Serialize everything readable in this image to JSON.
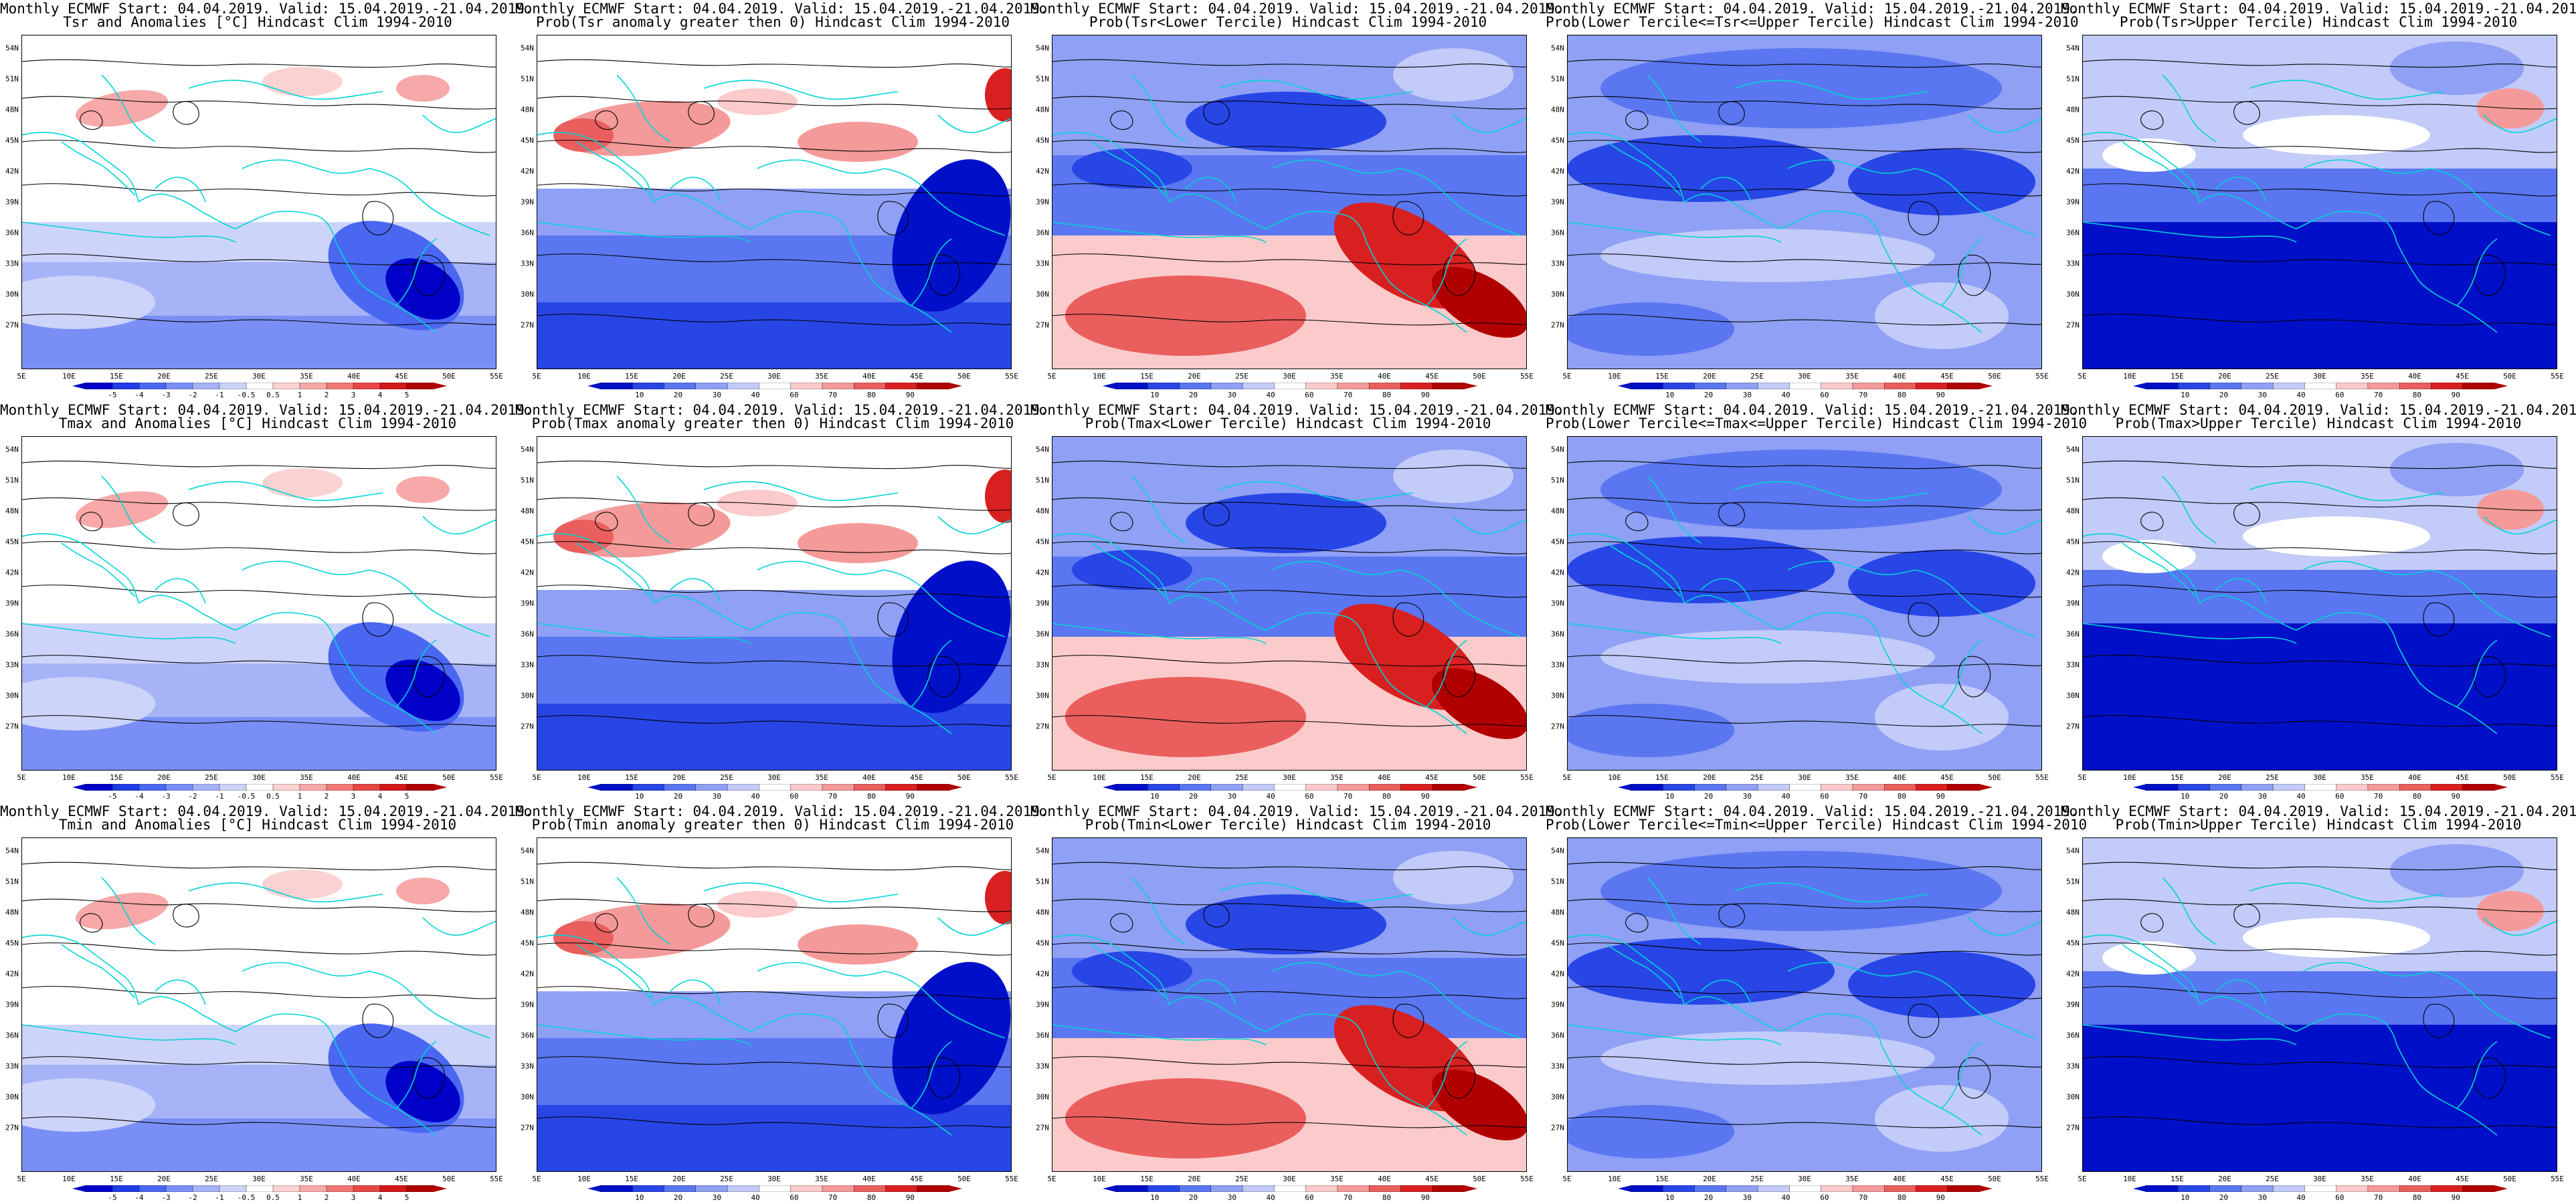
{
  "title_line1": "Monthly ECMWF Start: 04.04.2019. Valid: 15.04.2019.-21.04.2019.",
  "x_ticks": [
    "5E",
    "10E",
    "15E",
    "20E",
    "25E",
    "30E",
    "35E",
    "40E",
    "45E",
    "50E",
    "55E"
  ],
  "y_ticks": [
    "54N",
    "51N",
    "48N",
    "45N",
    "42N",
    "39N",
    "36N",
    "33N",
    "30N",
    "27N"
  ],
  "colorbars": {
    "anomaly": [
      "-5",
      "-4",
      "-3",
      "-2",
      "-1",
      "-0.5",
      "0.5",
      "1",
      "2",
      "3",
      "4",
      "5"
    ],
    "probability": [
      "10",
      "20",
      "30",
      "40",
      "60",
      "70",
      "80",
      "90"
    ]
  },
  "colors": {
    "coast": "#00d5d5",
    "contour": "#000000",
    "anomaly_scale": [
      "#0000c8",
      "#1f3ce6",
      "#4a67f2",
      "#7a8ff5",
      "#a6b3f7",
      "#cdd4fa",
      "#ffffff",
      "#fbd2d2",
      "#f7a8a8",
      "#f27878",
      "#e84545",
      "#d21717",
      "#b00000"
    ],
    "prob_scale": [
      "#0010c8",
      "#2846e6",
      "#5a76f0",
      "#8fa0f5",
      "#c3cbf8",
      "#ffffff",
      "#fbcaca",
      "#f49a9a",
      "#ea5e5e",
      "#d82020",
      "#b00000"
    ]
  },
  "panels": [
    {
      "title2": "Tsr and Anomalies [°C] Hindcast Clim 1994-2010",
      "type": "anomaly",
      "pattern": "warmN"
    },
    {
      "title2": "Prob(Tsr anomaly greater then 0) Hindcast Clim 1994-2010",
      "type": "probability",
      "pattern": "probWarmN"
    },
    {
      "title2": "Prob(Tsr<Lower Tercile) Hindcast Clim 1994-2010",
      "type": "probability",
      "pattern": "lowerTercile"
    },
    {
      "title2": "Prob(Lower Tercile<=Tsr<=Upper Tercile) Hindcast Clim 1994-2010",
      "type": "probability",
      "pattern": "middle"
    },
    {
      "title2": "Prob(Tsr>Upper Tercile) Hindcast Clim 1994-2010",
      "type": "probability",
      "pattern": "upperTercile"
    },
    {
      "title2": "Tmax and Anomalies [°C] Hindcast Clim 1994-2010",
      "type": "anomaly",
      "pattern": "warmN"
    },
    {
      "title2": "Prob(Tmax anomaly greater then 0) Hindcast Clim 1994-2010",
      "type": "probability",
      "pattern": "probWarmN"
    },
    {
      "title2": "Prob(Tmax<Lower Tercile) Hindcast Clim 1994-2010",
      "type": "probability",
      "pattern": "lowerTercile"
    },
    {
      "title2": "Prob(Lower Tercile<=Tmax<=Upper Tercile) Hindcast Clim 1994-2010",
      "type": "probability",
      "pattern": "middle"
    },
    {
      "title2": "Prob(Tmax>Upper Tercile) Hindcast Clim 1994-2010",
      "type": "probability",
      "pattern": "upperTercile"
    },
    {
      "title2": "Tmin and Anomalies [°C] Hindcast Clim 1994-2010",
      "type": "anomaly",
      "pattern": "warmN"
    },
    {
      "title2": "Prob(Tmin anomaly greater then 0) Hindcast Clim 1994-2010",
      "type": "probability",
      "pattern": "probWarmN"
    },
    {
      "title2": "Prob(Tmin<Lower Tercile) Hindcast Clim 1994-2010",
      "type": "probability",
      "pattern": "lowerTercile"
    },
    {
      "title2": "Prob(Lower Tercile<=Tmin<=Upper Tercile) Hindcast Clim 1994-2010",
      "type": "probability",
      "pattern": "middle"
    },
    {
      "title2": "Prob(Tmin>Upper Tercile) Hindcast Clim 1994-2010",
      "type": "probability",
      "pattern": "upperTercile"
    }
  ]
}
